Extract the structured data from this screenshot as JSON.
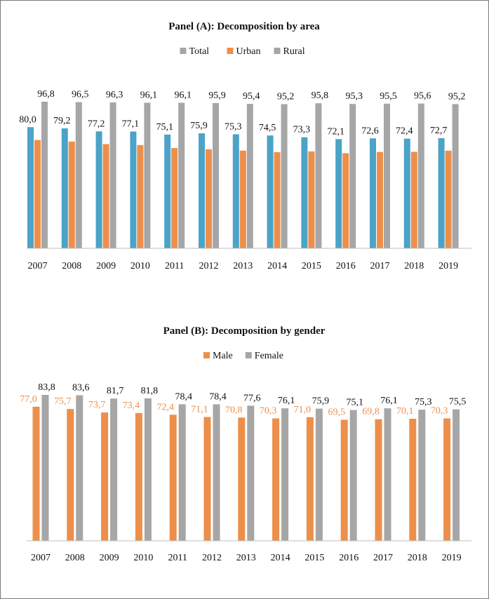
{
  "chart_data": [
    {
      "type": "bar",
      "title": "Panel (A): Decomposition by area",
      "categories": [
        "2007",
        "2008",
        "2009",
        "2010",
        "2011",
        "2012",
        "2013",
        "2014",
        "2015",
        "2016",
        "2017",
        "2018",
        "2019"
      ],
      "series": [
        {
          "name": "Total",
          "color": "#4ba3c7",
          "values": [
            80.0,
            79.2,
            77.2,
            77.1,
            75.1,
            75.9,
            75.3,
            74.5,
            73.3,
            72.1,
            72.6,
            72.4,
            72.7
          ],
          "labels": [
            "80,0",
            "79,2",
            "77,2",
            "77,1",
            "75,1",
            "75,9",
            "75,3",
            "74,5",
            "73,3",
            "72,1",
            "72,6",
            "72,4",
            "72,7"
          ]
        },
        {
          "name": "Urban",
          "color": "#ed8f4a",
          "values": [
            71.5,
            70.5,
            68.8,
            68.2,
            66.2,
            65.4,
            64.5,
            63.5,
            64.0,
            62.8,
            63.6,
            63.7,
            64.5
          ],
          "labels": null
        },
        {
          "name": "Rural",
          "color": "#a6a6a6",
          "values": [
            96.8,
            96.5,
            96.3,
            96.1,
            96.1,
            95.9,
            95.4,
            95.2,
            95.8,
            95.3,
            95.5,
            95.6,
            95.2
          ],
          "labels": [
            "96,8",
            "96,5",
            "96,3",
            "96,1",
            "96,1",
            "95,9",
            "95,4",
            "95,2",
            "95,8",
            "95,3",
            "95,5",
            "95,6",
            "95,2"
          ]
        }
      ],
      "legend_order": [
        "Total",
        "Urban",
        "Rural"
      ],
      "legend_colors": [
        "#a6a6a6",
        "#ed8f4a",
        "#a6a6a6"
      ],
      "legend_position": "top-center",
      "ylim": [
        0,
        100
      ],
      "grid": false
    },
    {
      "type": "bar",
      "title": "Panel (B): Decomposition by gender",
      "categories": [
        "2007",
        "2008",
        "2009",
        "2010",
        "2011",
        "2012",
        "2013",
        "2014",
        "2015",
        "2016",
        "2017",
        "2018",
        "2019"
      ],
      "series": [
        {
          "name": "Male",
          "color": "#ed8f4a",
          "label_color": "#ed8f4a",
          "values": [
            77.0,
            75.7,
            73.7,
            73.4,
            72.4,
            71.1,
            70.8,
            70.3,
            71.0,
            69.5,
            69.8,
            70.1,
            70.3
          ],
          "labels": [
            "77,0",
            "75,7",
            "73,7",
            "73,4",
            "72,4",
            "71,1",
            "70,8",
            "70,3",
            "71,0",
            "69,5",
            "69,8",
            "70,1",
            "70,3"
          ]
        },
        {
          "name": "Female",
          "color": "#a6a6a6",
          "label_color": "#111111",
          "values": [
            83.8,
            83.6,
            81.7,
            81.8,
            78.4,
            78.4,
            77.6,
            76.1,
            75.9,
            75.1,
            76.1,
            75.3,
            75.5
          ],
          "labels": [
            "83,8",
            "83,6",
            "81,7",
            "81,8",
            "78,4",
            "78,4",
            "77,6",
            "76,1",
            "75,9",
            "75,1",
            "76,1",
            "75,3",
            "75,5"
          ]
        }
      ],
      "legend_order": [
        "Male",
        "Female"
      ],
      "legend_position": "top-center",
      "ylim": [
        0,
        100
      ],
      "grid": false
    }
  ]
}
